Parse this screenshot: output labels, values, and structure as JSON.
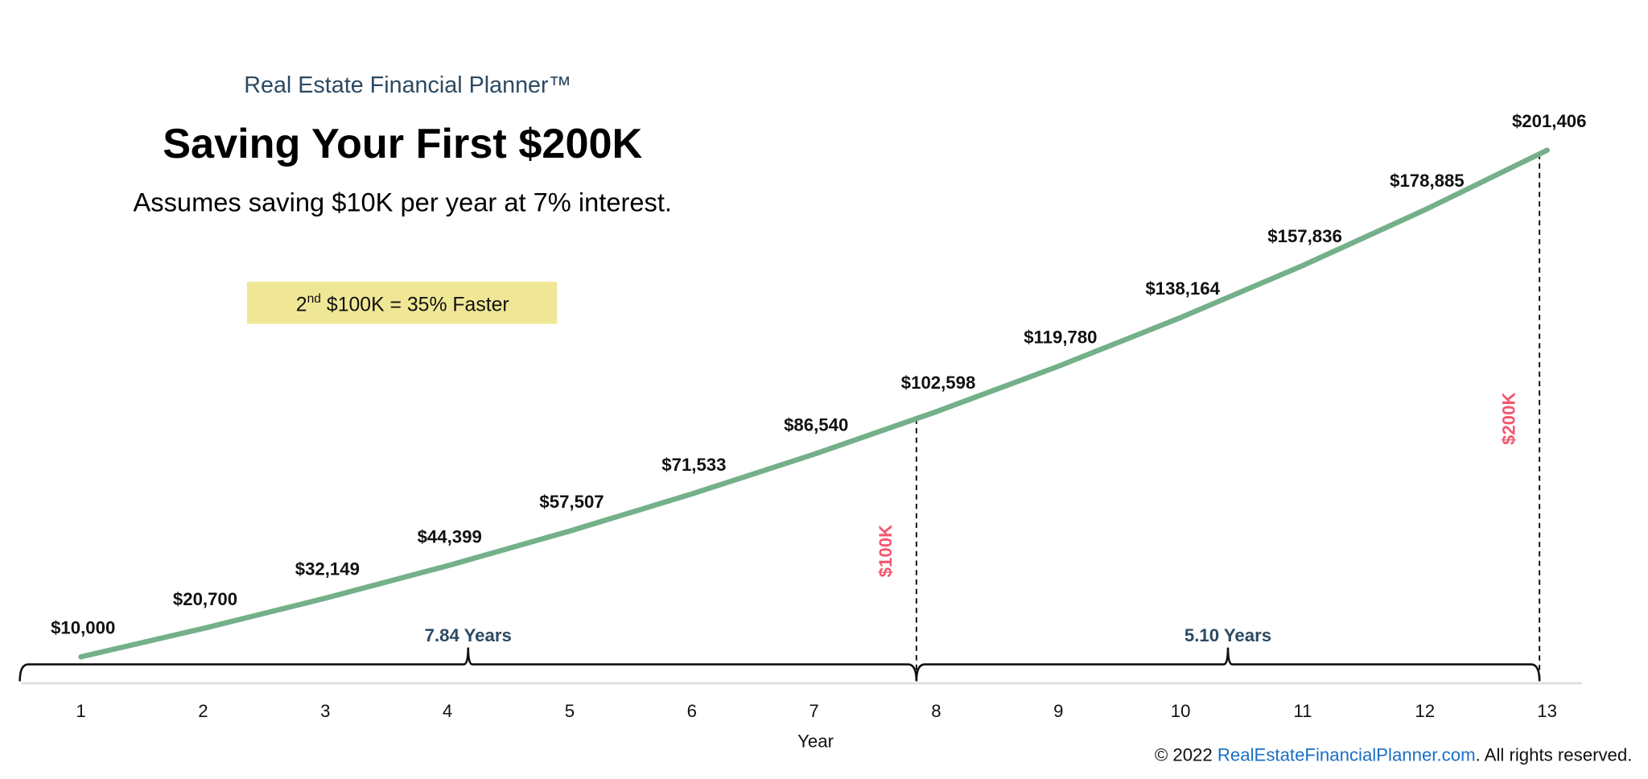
{
  "header": {
    "brand": "Real Estate Financial Planner™",
    "title": "Saving Your First $200K",
    "subtitle": "Assumes saving $10K per year at 7% interest."
  },
  "callout": {
    "ordinal": "2",
    "suffix": "nd",
    "text": " $100K = 35% Faster",
    "bg": "#f0e796"
  },
  "footer": {
    "prefix": "© 2022 ",
    "link": "RealEstateFinancialPlanner.com",
    "suffix": ". All rights reserved.",
    "link_color": "#1a6fc4"
  },
  "chart_data": {
    "type": "line",
    "xlabel": "Year",
    "ylabel": "",
    "x": [
      1,
      2,
      3,
      4,
      5,
      6,
      7,
      8,
      9,
      10,
      11,
      12,
      13
    ],
    "values": [
      10000,
      20700,
      32149,
      44399,
      57507,
      71533,
      86540,
      102598,
      119780,
      138164,
      157836,
      178885,
      201406
    ],
    "data_labels": [
      "$10,000",
      "$20,700",
      "$32,149",
      "$44,399",
      "$57,507",
      "$71,533",
      "$86,540",
      "$102,598",
      "$119,780",
      "$138,164",
      "$157,836",
      "$178,885",
      "$201,406"
    ],
    "xlim": [
      0.5,
      13.3
    ],
    "ylim": [
      0,
      210000
    ],
    "grid": false,
    "line_color": "#74b08a",
    "markers": [
      {
        "label": "$100K",
        "value": 100000
      },
      {
        "label": "$200K",
        "value": 200000
      }
    ],
    "marker_color": "#f4566f",
    "spans": [
      {
        "label": "7.84 Years"
      },
      {
        "label": "5.10 Years"
      }
    ],
    "span_color": "#2c4a63"
  }
}
